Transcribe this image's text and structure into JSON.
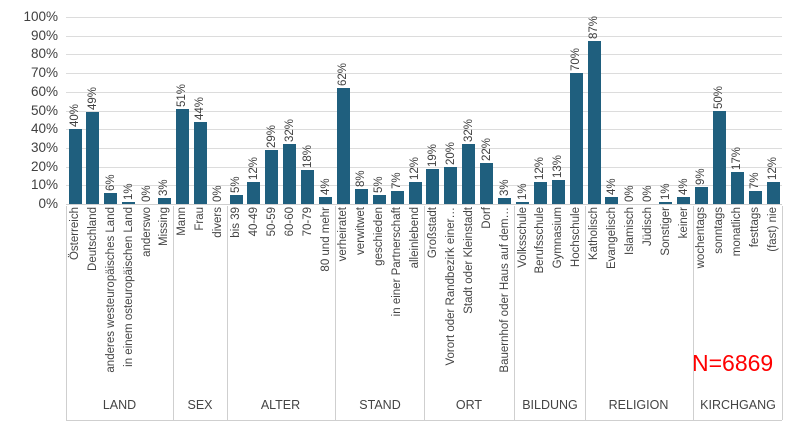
{
  "chart_data": {
    "type": "bar",
    "title": "",
    "xlabel": "",
    "ylabel": "",
    "ylim": [
      0,
      100
    ],
    "grid": true,
    "legend": "none",
    "value_suffix": "%",
    "y_ticks": [
      "0%",
      "10%",
      "20%",
      "30%",
      "40%",
      "50%",
      "60%",
      "70%",
      "80%",
      "90%",
      "100%"
    ],
    "bar_color": "#1f5f7e",
    "groups": [
      {
        "label": "LAND",
        "categories": [
          "Österreich",
          "Deutschland",
          "anderes westeuropäisches Land",
          "in einem osteuropäischen Land",
          "anderswo",
          "Missing"
        ],
        "values": [
          40,
          49,
          6,
          1,
          0,
          3
        ]
      },
      {
        "label": "SEX",
        "categories": [
          "Mann",
          "Frau",
          "divers"
        ],
        "values": [
          51,
          44,
          0
        ]
      },
      {
        "label": "ALTER",
        "categories": [
          "bis 39",
          "40-49",
          "50-59",
          "60-60",
          "70-79",
          "80 und mehr"
        ],
        "values": [
          5,
          12,
          29,
          32,
          18,
          4
        ]
      },
      {
        "label": "STAND",
        "categories": [
          "verheiratet",
          "verwitwet",
          "geschieden",
          "in einer Partnerschaft",
          "alleinlebend"
        ],
        "values": [
          62,
          8,
          5,
          7,
          12
        ]
      },
      {
        "label": "ORT",
        "categories": [
          "Großstadt",
          "Vorort oder Randbezirk einer…",
          "Stadt oder Kleinstadt",
          "Dorf",
          "Bauernhof oder Haus auf dem…"
        ],
        "values": [
          19,
          20,
          32,
          22,
          3
        ]
      },
      {
        "label": "BILDUNG",
        "categories": [
          "Volksschule",
          "Berufsschule",
          "Gymnasium",
          "Hochschule"
        ],
        "values": [
          1,
          12,
          13,
          70
        ]
      },
      {
        "label": "RELIGION",
        "categories": [
          "Katholisch",
          "Evangelisch",
          "Islamisch",
          "Jüdisch",
          "Sonstiger",
          "keiner"
        ],
        "values": [
          87,
          4,
          0,
          0,
          1,
          4
        ]
      },
      {
        "label": "KIRCHGANG",
        "categories": [
          "wochentags",
          "sonntags",
          "monatlich",
          "festtags",
          "(fast) nie"
        ],
        "values": [
          9,
          50,
          17,
          7,
          12
        ]
      }
    ],
    "annotation": {
      "text": "N=6869",
      "color": "#ff0000"
    }
  }
}
